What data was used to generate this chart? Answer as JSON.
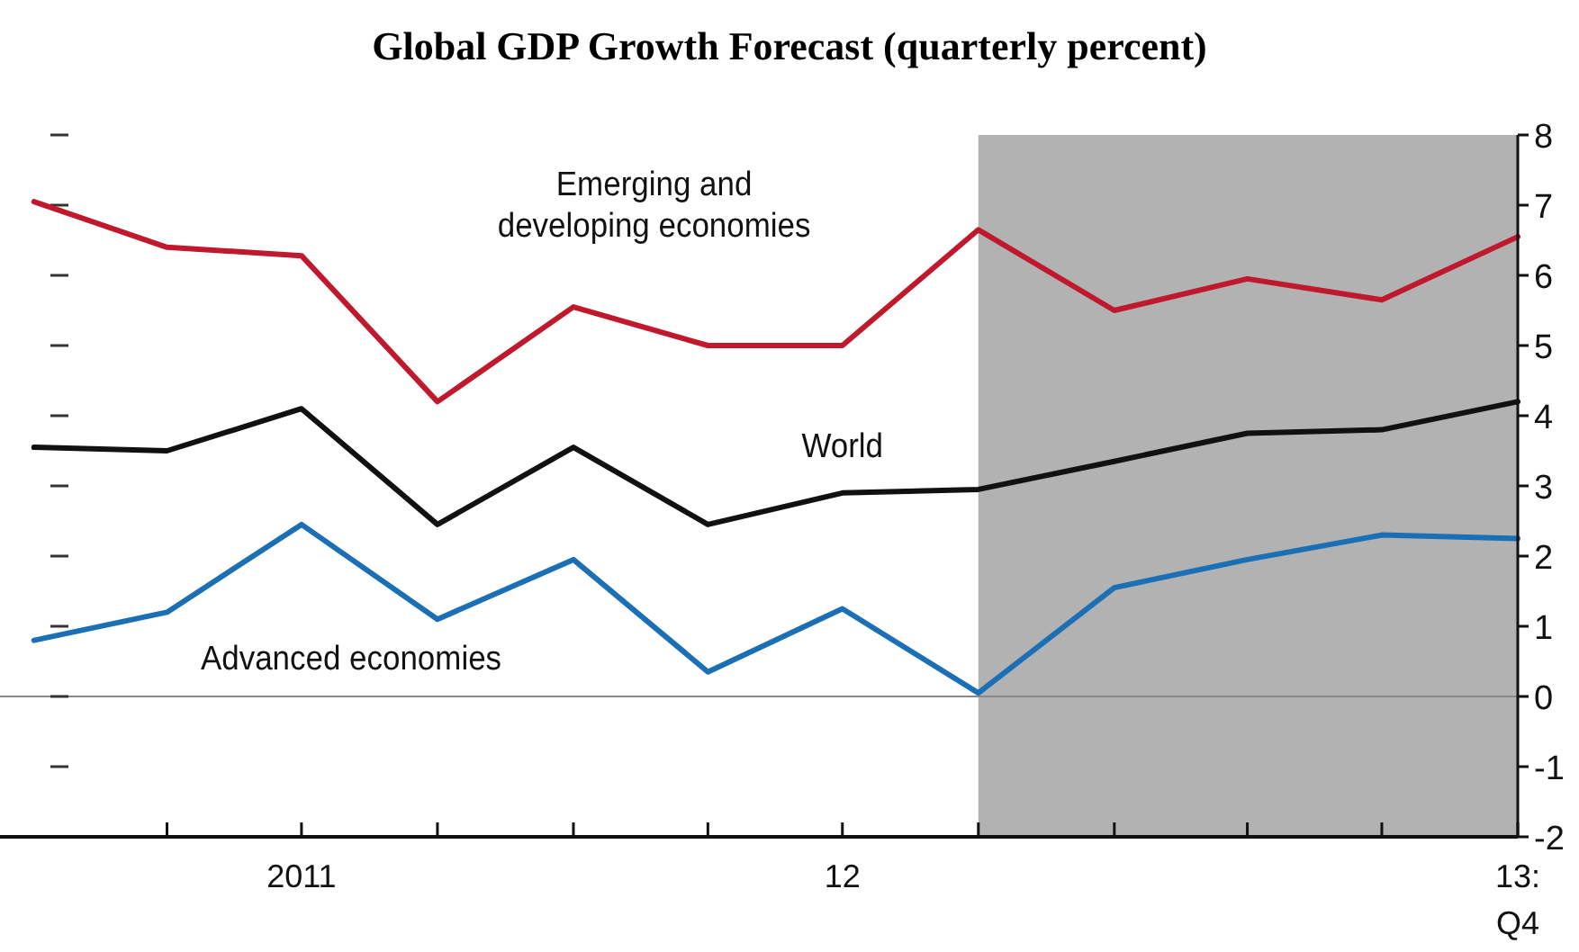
{
  "chart_data": {
    "type": "line",
    "title": "Global GDP Growth Forecast (quarterly percent)",
    "x": [
      "2011-01",
      "2011-04",
      "2011-07",
      "2011-10",
      "2012-01",
      "2012-04",
      "2012-07",
      "2012-10",
      "2013-01",
      "2013-04",
      "2013-07",
      "2013-10"
    ],
    "series": [
      {
        "name": "Emerging and developing economies",
        "color": "#c0182d",
        "values": [
          7.05,
          6.4,
          6.28,
          4.2,
          5.55,
          5.0,
          5.0,
          6.65,
          5.5,
          5.95,
          5.65,
          6.55
        ]
      },
      {
        "name": "World",
        "color": "#111111",
        "values": [
          3.55,
          3.5,
          4.1,
          2.45,
          3.55,
          2.45,
          2.9,
          2.95,
          3.35,
          3.75,
          3.8,
          4.2
        ]
      },
      {
        "name": "Advanced economies",
        "color": "#1a6fb5",
        "values": [
          0.8,
          1.2,
          2.45,
          1.1,
          1.95,
          0.35,
          1.25,
          0.05,
          1.55,
          1.95,
          2.3,
          2.25
        ]
      }
    ],
    "xlim": [
      "2010-12-09",
      "2013-10"
    ],
    "xticks": [
      {
        "value": "2011-04",
        "label": null
      },
      {
        "value": "2011-07",
        "label": "2011"
      },
      {
        "value": "2011-10",
        "label": null
      },
      {
        "value": "2012-01",
        "label": null
      },
      {
        "value": "2012-04",
        "label": null
      },
      {
        "value": "2012-07",
        "label": "12"
      },
      {
        "value": "2012-10",
        "label": null
      },
      {
        "value": "2013-01",
        "label": null
      },
      {
        "value": "2013-04",
        "label": null
      },
      {
        "value": "2013-07",
        "label": null
      },
      {
        "value": "2013-10",
        "label": "13: Q4"
      }
    ],
    "ylim": [
      -2,
      8
    ],
    "yticks": [
      -2,
      -1,
      0,
      1,
      2,
      3,
      4,
      5,
      6,
      7,
      8
    ],
    "bands": [
      {
        "axis": "x",
        "from": "2012-10",
        "to": "2013-10",
        "color": "#b2b2b2"
      }
    ],
    "ref_lines": [
      {
        "axis": "y",
        "value": 0,
        "color": "#888888"
      }
    ],
    "grid": false,
    "marker": "none",
    "line_style": "solid"
  }
}
